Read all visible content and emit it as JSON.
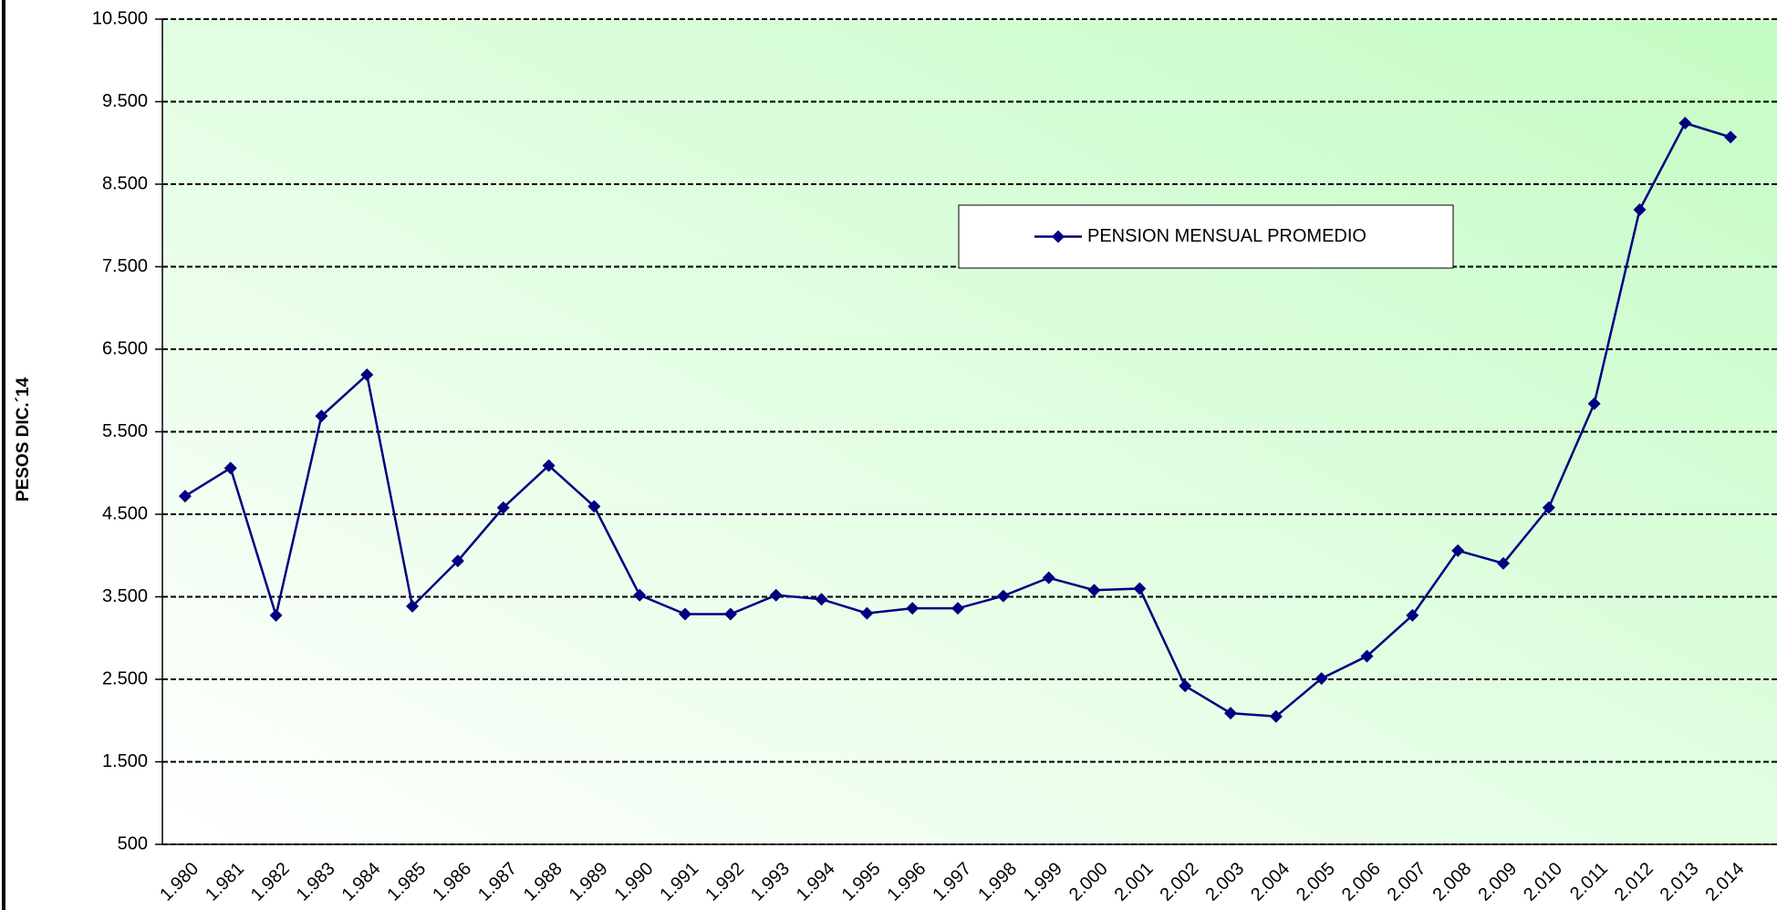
{
  "chart_data": {
    "type": "line",
    "y_label": "PESOS DIC.´14",
    "categories": [
      "1.980",
      "1.981",
      "1.982",
      "1.983",
      "1.984",
      "1.985",
      "1.986",
      "1.987",
      "1.988",
      "1.989",
      "1.990",
      "1.991",
      "1.992",
      "1.993",
      "1.994",
      "1.995",
      "1.996",
      "1.997",
      "1.998",
      "1.999",
      "2.000",
      "2.001",
      "2.002",
      "2.003",
      "2.004",
      "2.005",
      "2.006",
      "2.007",
      "2.008",
      "2.009",
      "2.010",
      "2.011",
      "2.012",
      "2.013",
      "2.014"
    ],
    "series": [
      {
        "name": "PENSION MENSUAL PROMEDIO",
        "color": "#000080",
        "values": [
          4720,
          5060,
          3275,
          5690,
          6190,
          3385,
          3935,
          4580,
          5090,
          4595,
          3520,
          3290,
          3290,
          3520,
          3470,
          3300,
          3360,
          3360,
          3510,
          3730,
          3580,
          3600,
          2420,
          2090,
          2050,
          2510,
          2780,
          3275,
          4060,
          3905,
          4580,
          5840,
          8190,
          9240,
          9070
        ]
      }
    ],
    "ylim": [
      500,
      10500
    ],
    "yticks": [
      500,
      {
        "value": 1500,
        "label": "1.500"
      },
      {
        "value": 2500,
        "label": "2.500"
      },
      {
        "value": 3500,
        "label": "3.500"
      },
      {
        "value": 4500,
        "label": "4.500"
      },
      {
        "value": 5500,
        "label": "5.500"
      },
      {
        "value": 6500,
        "label": "6.500"
      },
      {
        "value": 7500,
        "label": "7.500"
      },
      {
        "value": 8500,
        "label": "8.500"
      },
      {
        "value": 9500,
        "label": "9.500"
      },
      {
        "value": 10500,
        "label": "10.500"
      }
    ],
    "grid": true,
    "legend": "top"
  }
}
